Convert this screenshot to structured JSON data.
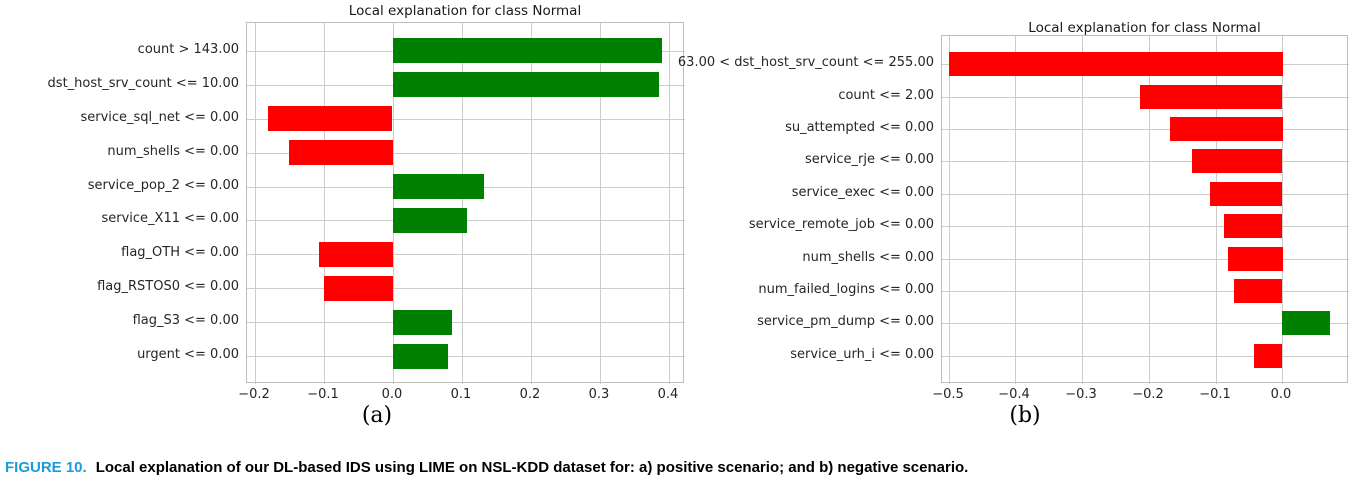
{
  "figure_caption": {
    "label": "FIGURE 10.",
    "text": "Local explanation of our DL-based IDS using LIME on NSL-KDD dataset for: a) positive scenario; and b) negative scenario."
  },
  "colors": {
    "positive_bar": "#008000",
    "negative_bar": "#ff0000",
    "grid": "#cccccc",
    "spine": "#bdbdbd",
    "text": "#262626",
    "caption_label": "#1a9cd8"
  },
  "chart_data": [
    {
      "id": "a",
      "type": "bar",
      "orientation": "horizontal",
      "title": "Local explanation for class Normal",
      "subplot_label": "(a)",
      "grid": true,
      "legend": null,
      "categories": [
        "count > 143.00",
        "dst_host_srv_count <= 10.00",
        "service_sql_net <= 0.00",
        "num_shells <= 0.00",
        "service_pop_2 <= 0.00",
        "service_X11 <= 0.00",
        "flag_OTH <= 0.00",
        "flag_RSTOS0 <= 0.00",
        "flag_S3 <= 0.00",
        "urgent <= 0.00"
      ],
      "values": [
        0.39,
        0.385,
        -0.18,
        -0.15,
        0.132,
        0.107,
        -0.107,
        -0.1,
        0.086,
        0.08
      ],
      "x_ticks": [
        -0.2,
        -0.1,
        0.0,
        0.1,
        0.2,
        0.3,
        0.4
      ],
      "xlim": [
        -0.211,
        0.423
      ]
    },
    {
      "id": "b",
      "type": "bar",
      "orientation": "horizontal",
      "title": "Local explanation for class Normal",
      "subplot_label": "(b)",
      "grid": true,
      "legend": null,
      "categories": [
        "63.00 < dst_host_srv_count <= 255.00",
        "count <= 2.00",
        "su_attempted <= 0.00",
        "service_rje <= 0.00",
        "service_exec <= 0.00",
        "service_remote_job <= 0.00",
        "num_shells <= 0.00",
        "num_failed_logins <= 0.00",
        "service_pm_dump <= 0.00",
        "service_urh_i <= 0.00"
      ],
      "values": [
        -0.5,
        -0.213,
        -0.169,
        -0.135,
        -0.108,
        -0.087,
        -0.082,
        -0.072,
        0.072,
        -0.042
      ],
      "x_ticks": [
        -0.5,
        -0.4,
        -0.3,
        -0.2,
        -0.1,
        0.0
      ],
      "xlim": [
        -0.51,
        0.1
      ]
    }
  ]
}
